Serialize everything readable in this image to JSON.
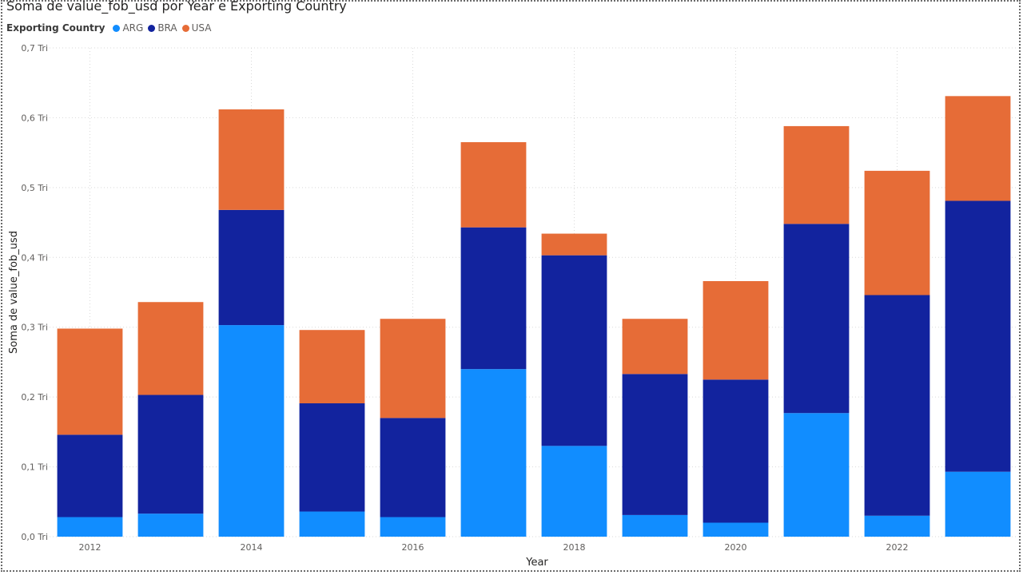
{
  "chart_data": {
    "type": "bar",
    "stacked": true,
    "title": "Soma de value_fob_usd por Year e Exporting Country",
    "xlabel": "Year",
    "ylabel": "Soma de value_fob_usd",
    "legend_title": "Exporting Country",
    "legend_position": "top-left",
    "grid": true,
    "categories": [
      "2012",
      "2013",
      "2014",
      "2015",
      "2016",
      "2017",
      "2018",
      "2019",
      "2020",
      "2021",
      "2022",
      "2023"
    ],
    "x_tick_labels": [
      "2012",
      "",
      "2014",
      "",
      "2016",
      "",
      "2018",
      "",
      "2020",
      "",
      "2022",
      ""
    ],
    "ylim": [
      0,
      0.7
    ],
    "y_ticks": [
      0,
      0.1,
      0.2,
      0.3,
      0.4,
      0.5,
      0.6,
      0.7
    ],
    "y_tick_labels": [
      "0,0 Tri",
      "0,1 Tri",
      "0,2 Tri",
      "0,3 Tri",
      "0,4 Tri",
      "0,5 Tri",
      "0,6 Tri",
      "0,7 Tri"
    ],
    "y_unit": "Tri",
    "series": [
      {
        "name": "ARG",
        "color": "#118DFF",
        "values": [
          0.028,
          0.033,
          0.303,
          0.036,
          0.028,
          0.24,
          0.13,
          0.031,
          0.02,
          0.177,
          0.03,
          0.093
        ]
      },
      {
        "name": "BRA",
        "color": "#12239E",
        "values": [
          0.118,
          0.17,
          0.165,
          0.155,
          0.142,
          0.203,
          0.273,
          0.202,
          0.205,
          0.271,
          0.316,
          0.388
        ]
      },
      {
        "name": "USA",
        "color": "#E66C37",
        "values": [
          0.152,
          0.133,
          0.144,
          0.105,
          0.142,
          0.122,
          0.031,
          0.079,
          0.141,
          0.14,
          0.178,
          0.15
        ]
      }
    ]
  }
}
